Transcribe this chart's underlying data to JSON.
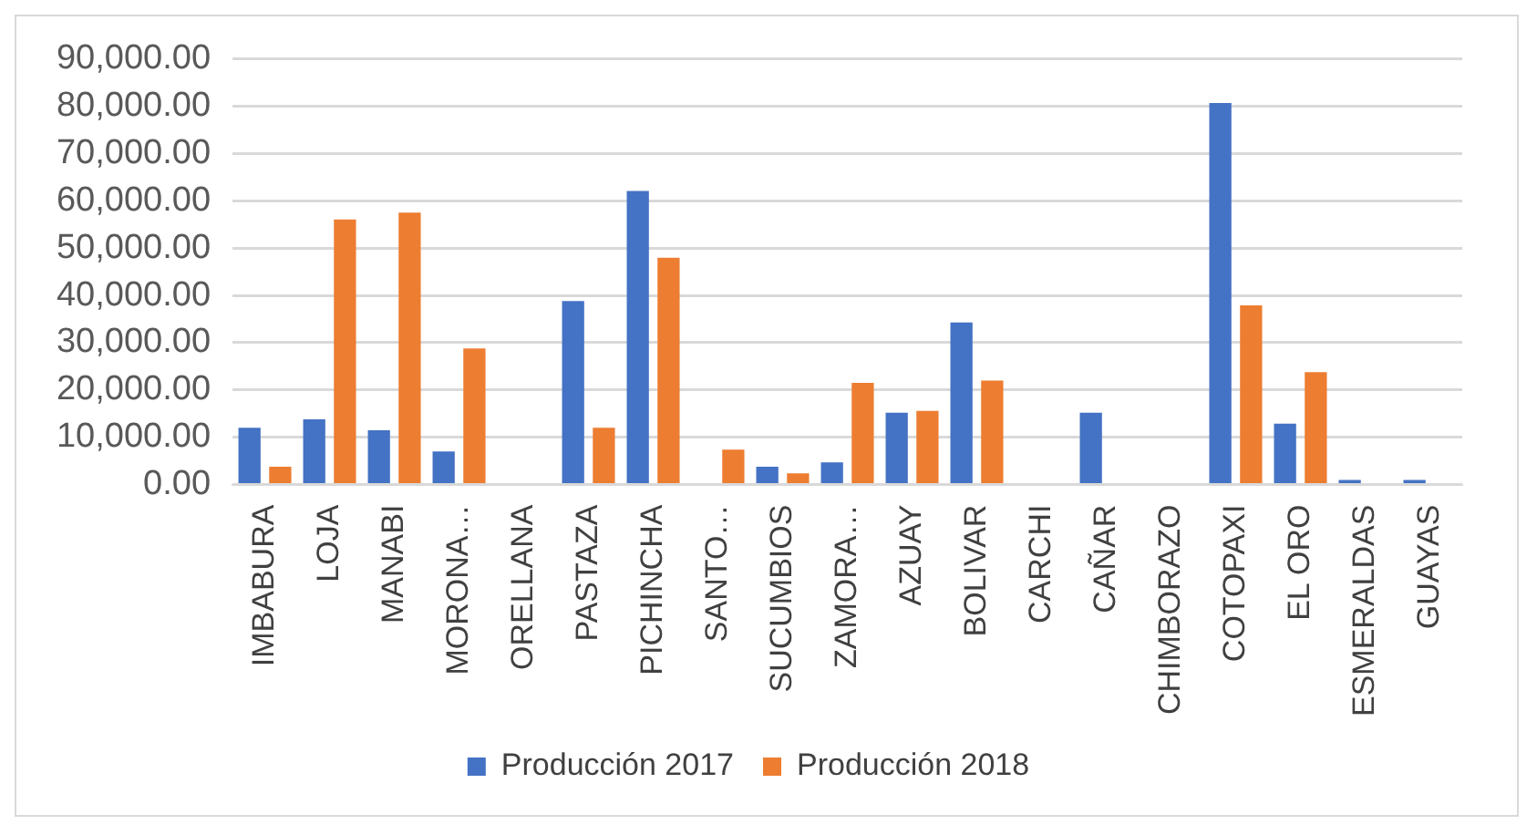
{
  "chart_data": {
    "type": "bar",
    "categories": [
      "IMBABURA",
      "LOJA",
      "MANABI",
      "MORONA…",
      "ORELLANA",
      "PASTAZA",
      "PICHINCHA",
      "SANTO…",
      "SUCUMBIOS",
      "ZAMORA…",
      "AZUAY",
      "BOLIVAR",
      "CARCHI",
      "CAÑAR",
      "CHIMBORAZO",
      "COTOPAXI",
      "EL ORO",
      "ESMERALDAS",
      "GUAYAS"
    ],
    "series": [
      {
        "name": "Producción 2017",
        "color": "#4472c4",
        "values": [
          12000,
          13800,
          11500,
          7000,
          0,
          38800,
          62100,
          0,
          3800,
          4700,
          15200,
          34300,
          0,
          15200,
          0,
          80700,
          12900,
          1000,
          1000
        ]
      },
      {
        "name": "Producción 2018",
        "color": "#ed7d31",
        "values": [
          3800,
          56100,
          57500,
          28800,
          0,
          12000,
          48000,
          7400,
          2400,
          21500,
          15600,
          22000,
          0,
          0,
          0,
          37900,
          23800,
          0,
          0
        ]
      }
    ],
    "ylim": [
      0,
      90000
    ],
    "yticks": [
      {
        "value": 0,
        "label": "0.00"
      },
      {
        "value": 10000,
        "label": "10,000.00"
      },
      {
        "value": 20000,
        "label": "20,000.00"
      },
      {
        "value": 30000,
        "label": "30,000.00"
      },
      {
        "value": 40000,
        "label": "40,000.00"
      },
      {
        "value": 50000,
        "label": "50,000.00"
      },
      {
        "value": 60000,
        "label": "60,000.00"
      },
      {
        "value": 70000,
        "label": "70,000.00"
      },
      {
        "value": 80000,
        "label": "80,000.00"
      },
      {
        "value": 90000,
        "label": "90,000.00"
      }
    ],
    "grid": "y",
    "legend": "bottom"
  }
}
